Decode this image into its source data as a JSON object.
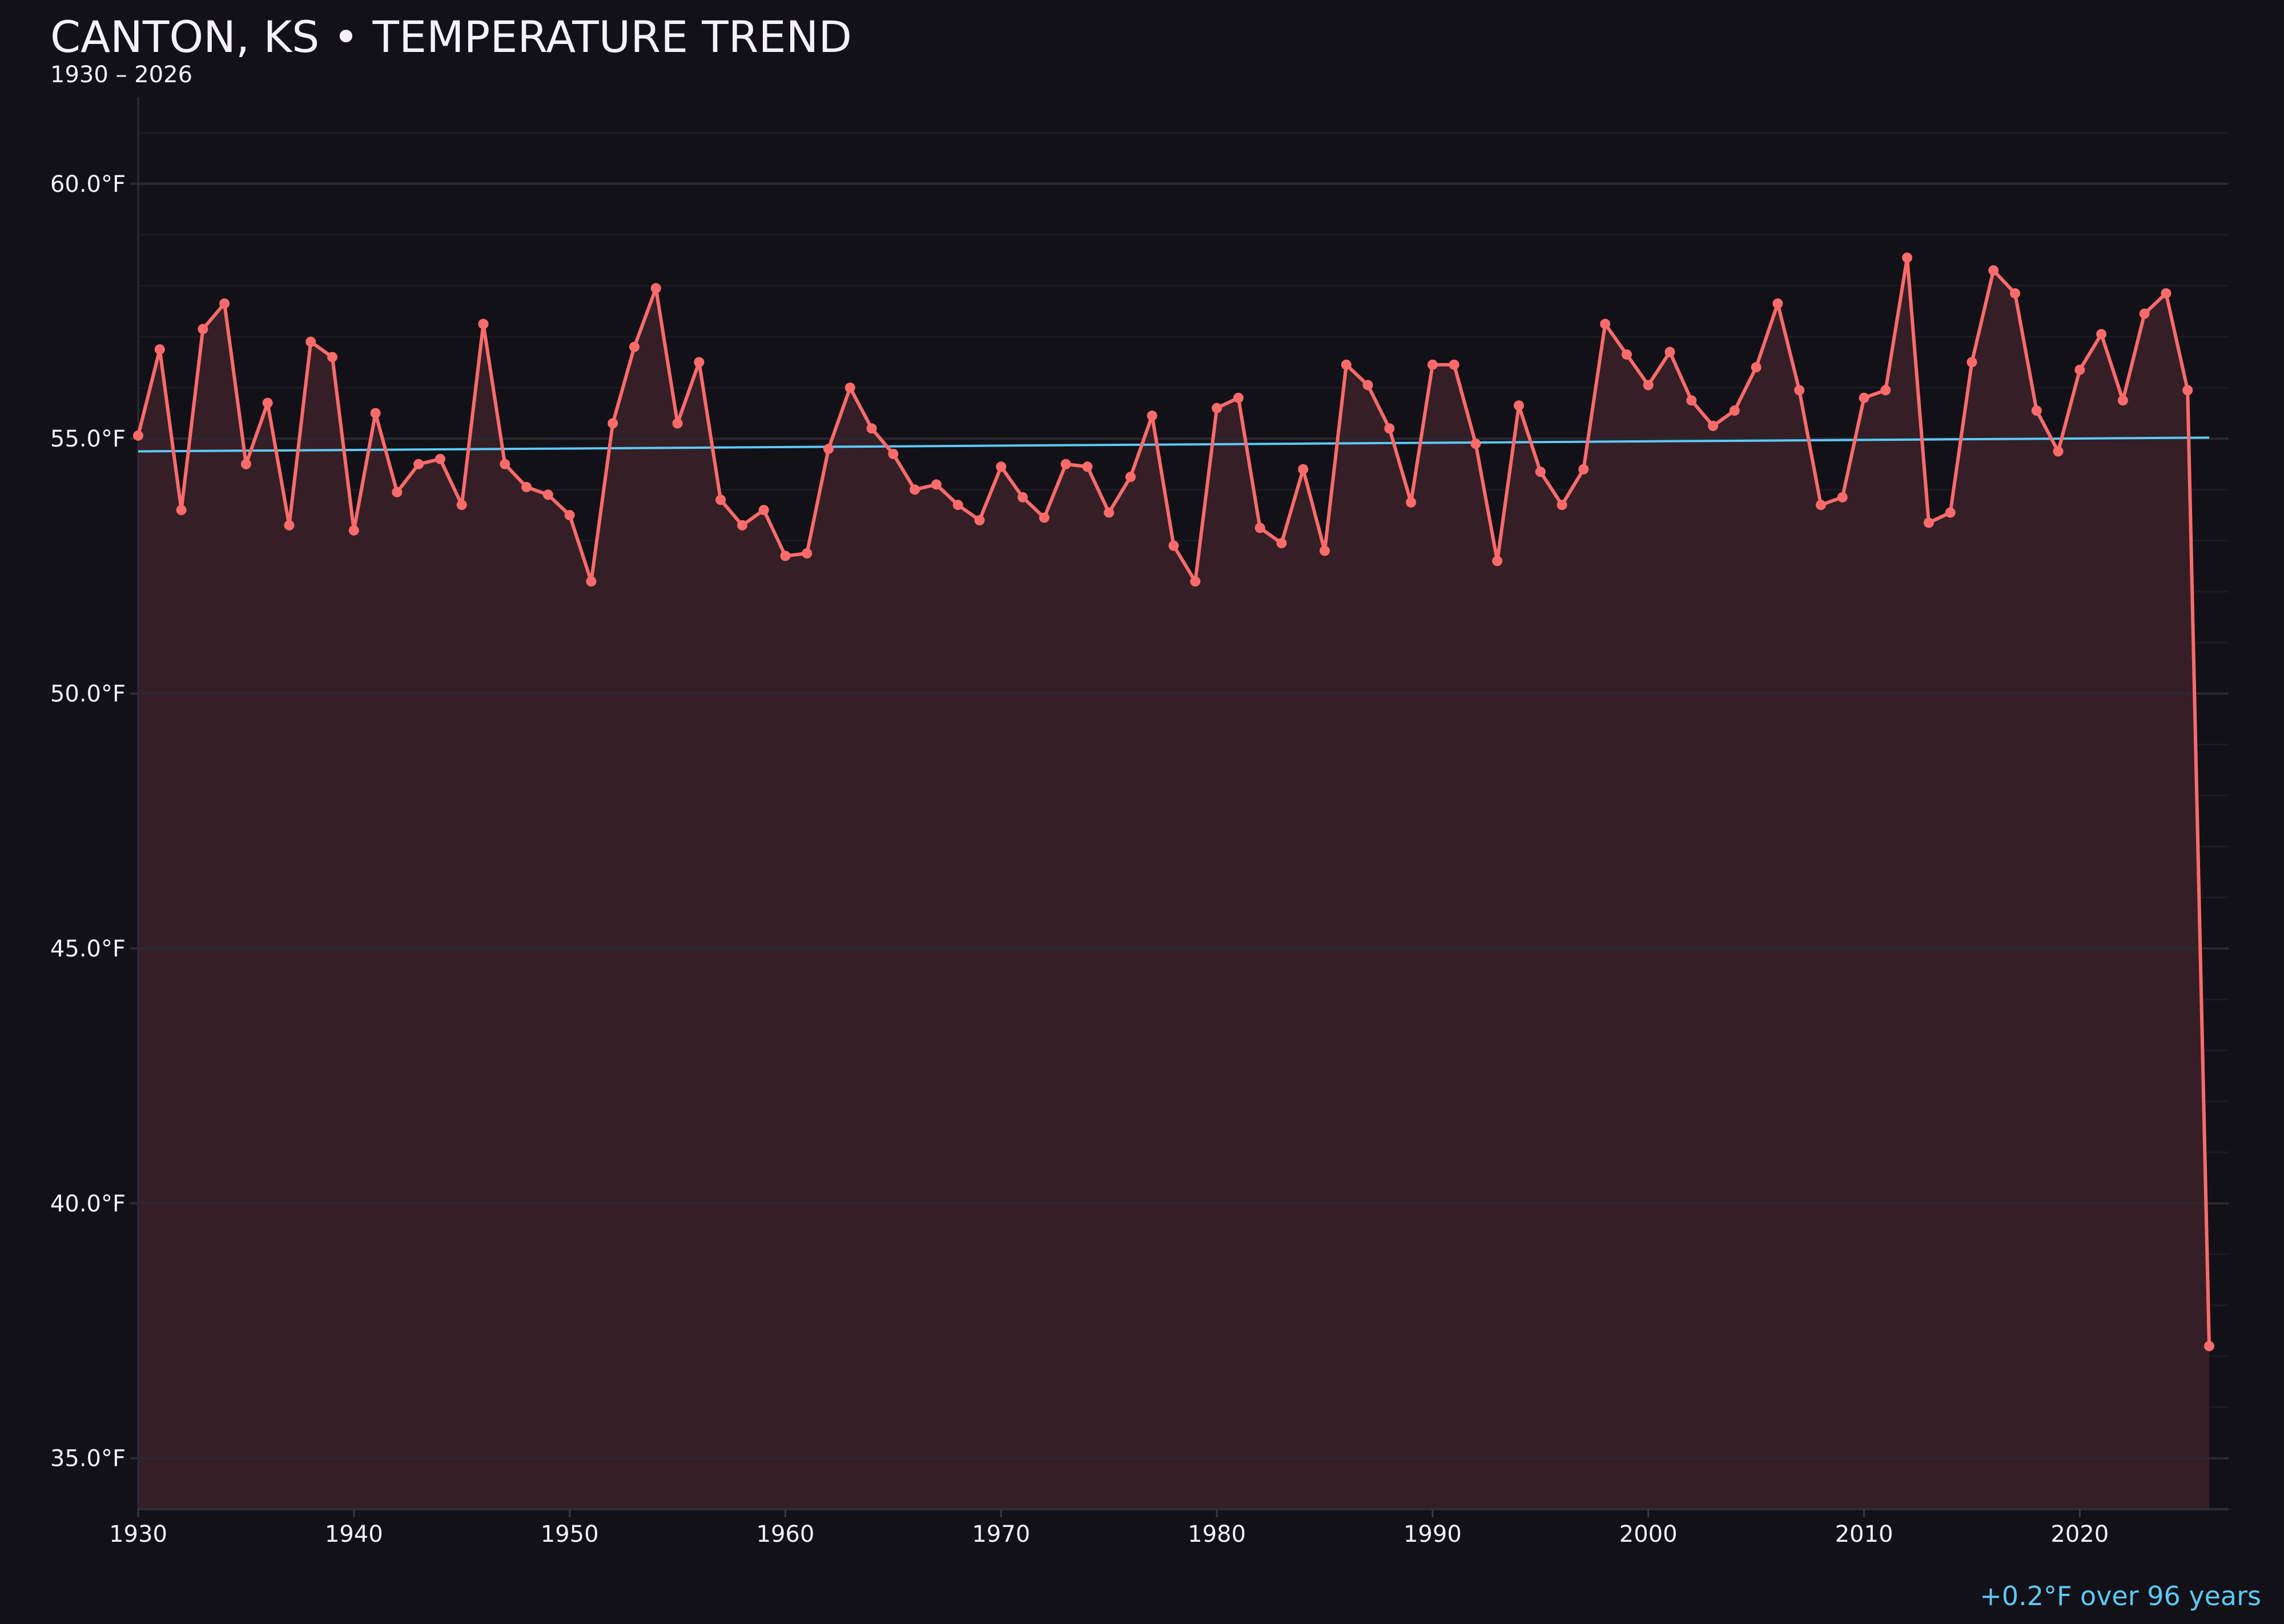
{
  "title": "CANTON, KS • TEMPERATURE TREND",
  "subtitle": "1930 – 2026",
  "footer_note": "+0.2°F over 96 years",
  "colors": {
    "background": "#121117",
    "series_line": "#ff6b6b",
    "fill": "#351f26",
    "trend_line": "#5ec8f5",
    "text": "#f4f2f8"
  },
  "chart_data": {
    "type": "line",
    "title": "CANTON, KS • TEMPERATURE TREND",
    "subtitle": "1930 – 2026",
    "xlabel": "",
    "ylabel": "",
    "xlim": [
      1930,
      2026.9
    ],
    "ylim": [
      34,
      61.7
    ],
    "grid": true,
    "area_fill": true,
    "x_ticks": [
      1930,
      1940,
      1950,
      1960,
      1970,
      1980,
      1990,
      2000,
      2010,
      2020
    ],
    "x_tick_labels": [
      "1930",
      "1940",
      "1950",
      "1960",
      "1970",
      "1980",
      "1990",
      "2000",
      "2010",
      "2020"
    ],
    "y_ticks": [
      35,
      40,
      45,
      50,
      55,
      60
    ],
    "y_tick_labels": [
      "35.0°F",
      "40.0°F",
      "45.0°F",
      "50.0°F",
      "55.0°F",
      "60.0°F"
    ],
    "x": [
      1930,
      1931,
      1932,
      1933,
      1934,
      1935,
      1936,
      1937,
      1938,
      1939,
      1940,
      1941,
      1942,
      1943,
      1944,
      1945,
      1946,
      1947,
      1948,
      1949,
      1950,
      1951,
      1952,
      1953,
      1954,
      1955,
      1956,
      1957,
      1958,
      1959,
      1960,
      1961,
      1962,
      1963,
      1964,
      1965,
      1966,
      1967,
      1968,
      1969,
      1970,
      1971,
      1972,
      1973,
      1974,
      1975,
      1976,
      1977,
      1978,
      1979,
      1980,
      1981,
      1982,
      1983,
      1984,
      1985,
      1986,
      1987,
      1988,
      1989,
      1990,
      1991,
      1992,
      1993,
      1994,
      1995,
      1996,
      1997,
      1998,
      1999,
      2000,
      2001,
      2002,
      2003,
      2004,
      2005,
      2006,
      2007,
      2008,
      2009,
      2010,
      2011,
      2012,
      2013,
      2014,
      2015,
      2016,
      2017,
      2018,
      2019,
      2020,
      2021,
      2022,
      2023,
      2024,
      2025,
      2026
    ],
    "values": [
      55.06,
      56.75,
      53.6,
      57.15,
      57.65,
      54.5,
      55.7,
      53.3,
      56.9,
      56.6,
      53.2,
      55.5,
      53.95,
      54.5,
      54.6,
      53.7,
      57.25,
      54.5,
      54.05,
      53.9,
      53.5,
      52.2,
      55.3,
      56.8,
      57.95,
      55.3,
      56.5,
      53.8,
      53.3,
      53.6,
      52.7,
      52.75,
      54.8,
      56.0,
      55.2,
      54.7,
      54.0,
      54.1,
      53.7,
      53.4,
      54.45,
      53.85,
      53.45,
      54.5,
      54.45,
      53.55,
      54.25,
      55.45,
      52.9,
      52.2,
      55.6,
      55.8,
      53.25,
      52.95,
      54.4,
      52.8,
      56.45,
      56.05,
      55.2,
      53.75,
      56.45,
      56.45,
      54.9,
      52.6,
      55.65,
      54.35,
      53.7,
      54.4,
      57.25,
      56.65,
      56.05,
      56.7,
      55.75,
      55.25,
      55.55,
      56.4,
      57.65,
      55.95,
      53.7,
      53.85,
      55.8,
      55.95,
      58.55,
      53.35,
      53.55,
      56.5,
      58.3,
      57.85,
      55.55,
      54.75,
      56.35,
      57.05,
      55.75,
      57.45,
      57.85,
      55.95,
      37.2
    ],
    "trend": {
      "x": [
        1930,
        2026
      ],
      "y": [
        54.75,
        55.02
      ]
    }
  }
}
